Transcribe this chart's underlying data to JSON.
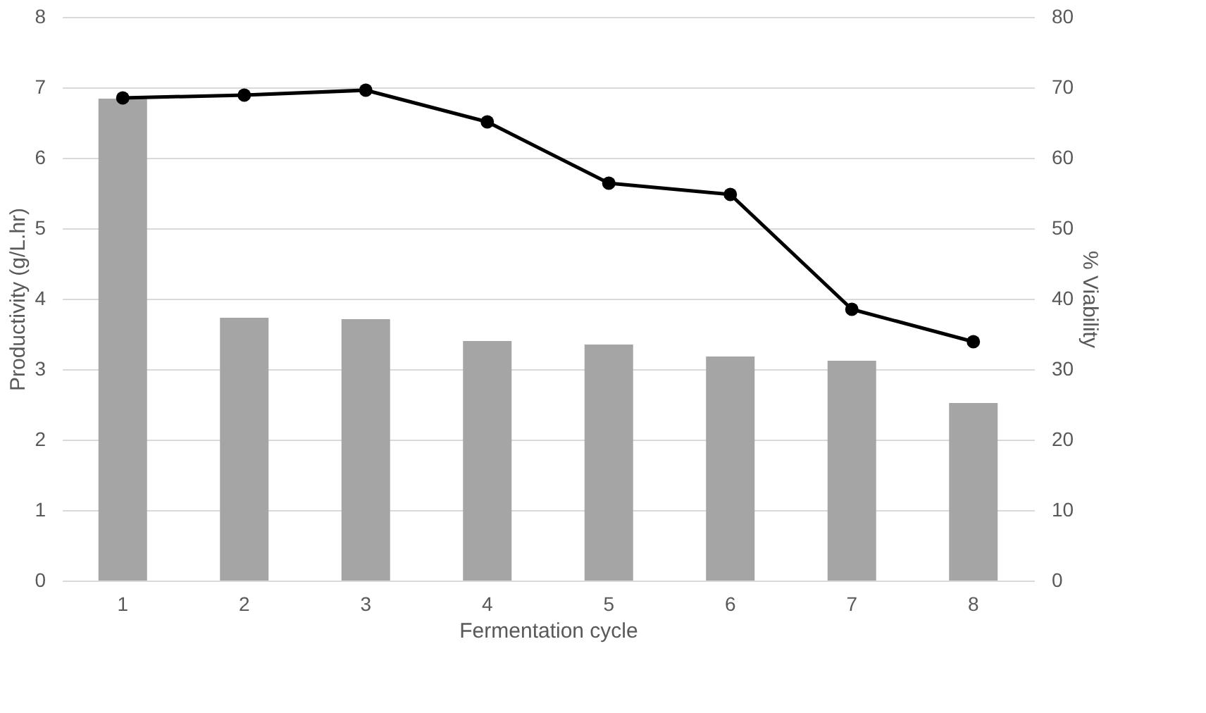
{
  "chart_data": {
    "type": "bar",
    "xlabel": "Fermentation cycle",
    "ylabel": "Productivity (g/L.hr)",
    "y2label": "% Viability",
    "categories": [
      "1",
      "2",
      "3",
      "4",
      "5",
      "6",
      "7",
      "8"
    ],
    "series": [
      {
        "color": "#a5a5a5",
        "values": [
          6.84,
          3.73,
          3.71,
          3.4,
          3.35,
          3.18,
          3.12,
          2.52
        ]
      },
      {
        "type": "line",
        "axis": "y2",
        "color": "#000000",
        "marker": "circle",
        "values": [
          68.5,
          68.9,
          69.6,
          65.1,
          56.4,
          54.8,
          38.5,
          33.9
        ]
      }
    ],
    "ylim": [
      0,
      8
    ],
    "yticks": [
      0,
      1,
      2,
      3,
      4,
      5,
      6,
      7,
      8
    ],
    "y2lim": [
      0,
      80
    ],
    "y2ticks": [
      0,
      10,
      20,
      30,
      40,
      50,
      60,
      70,
      80
    ],
    "grid": "y"
  }
}
